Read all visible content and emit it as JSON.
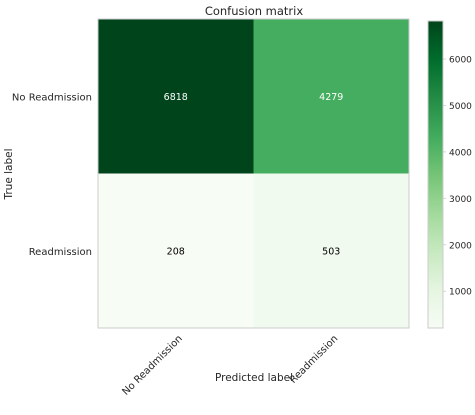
{
  "chart_data": {
    "type": "heatmap",
    "title": "Confusion matrix",
    "xlabel": "Predicted label",
    "ylabel": "True label",
    "x_categories": [
      "No Readmission",
      "Readmission"
    ],
    "y_categories": [
      "No Readmission",
      "Readmission"
    ],
    "values": [
      [
        6818,
        4279
      ],
      [
        208,
        503
      ]
    ],
    "colormap": "Greens",
    "colorbar": {
      "ticks": [
        1000,
        2000,
        3000,
        4000,
        5000,
        6000
      ],
      "range": [
        208,
        6818
      ]
    },
    "grid": false
  },
  "colors": {
    "matrix_border": "#cccccc",
    "text": "#262626",
    "cell_text_light": "#ffffff",
    "cell_text_dark": "#000000"
  }
}
